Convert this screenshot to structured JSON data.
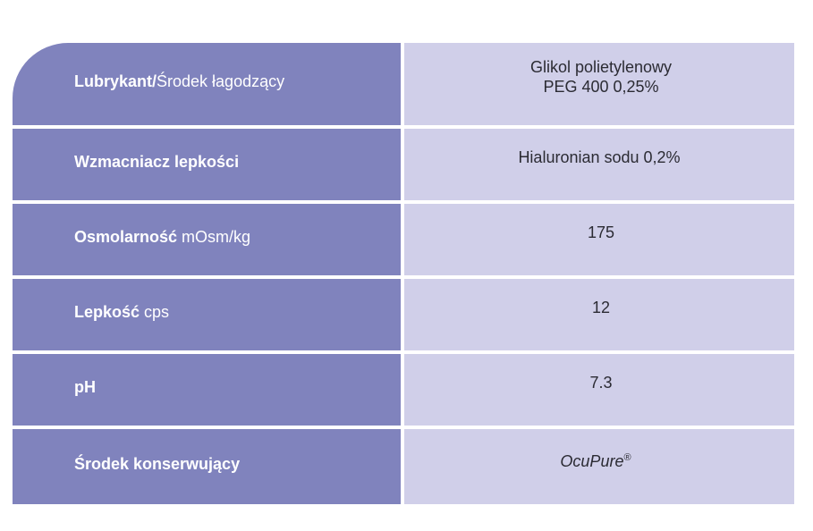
{
  "table": {
    "rows": [
      {
        "label_bold": "Lubrykant/",
        "label_normal": "Środek łagodzący",
        "value_lines": [
          "Glikol polietylenowy",
          "PEG 400 0,25%"
        ]
      },
      {
        "label_bold": "Wzmacniacz lepkości",
        "label_normal": "",
        "value_lines": [
          "Hialuronian sodu 0,2%"
        ]
      },
      {
        "label_bold": "Osmolarność",
        "label_normal": " mOsm/kg",
        "value_lines": [
          "175"
        ]
      },
      {
        "label_bold": "Lepkość",
        "label_normal": " cps",
        "value_lines": [
          "12"
        ]
      },
      {
        "label_bold": "pH",
        "label_normal": "",
        "value_lines": [
          "7.3"
        ]
      },
      {
        "label_bold": "Środek konserwujący",
        "label_normal": "",
        "value_main": "OcuPure",
        "value_sup": "®"
      }
    ]
  },
  "colors": {
    "label_background": "#8083bd",
    "value_background": "#d0cfe9",
    "label_text": "#ffffff",
    "value_text": "#2b2b33"
  }
}
